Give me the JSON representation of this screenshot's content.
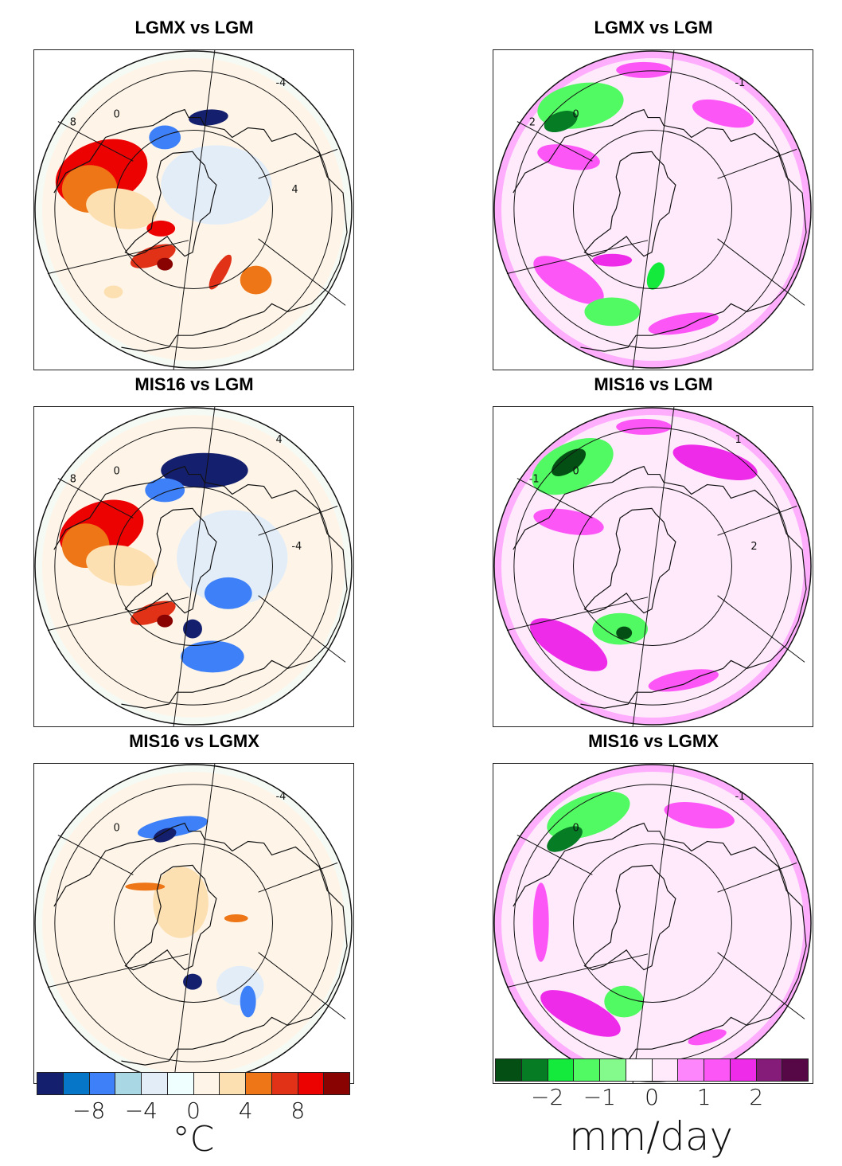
{
  "chart_data": [
    {
      "type": "heatmap",
      "projection": "polar-stereographic (south pole)",
      "variable": "temperature difference",
      "title": "LGMX vs LGM",
      "position": "top-left",
      "contour_labels": [
        "0",
        "-4",
        "8",
        "4"
      ],
      "features": [
        {
          "region": "western continent sector",
          "sign": "warm",
          "approx_value": 8
        },
        {
          "region": "upper center ocean",
          "sign": "cold",
          "approx_value": -10
        },
        {
          "region": "inner continent",
          "sign": "slightly cold",
          "approx_value": -2
        },
        {
          "region": "lower right ocean",
          "sign": "warm",
          "approx_value": 4
        }
      ]
    },
    {
      "type": "heatmap",
      "projection": "polar-stereographic (south pole)",
      "variable": "precipitation difference",
      "title": "LGMX vs LGM",
      "position": "top-right",
      "contour_labels": [
        "0",
        "-1",
        "2"
      ],
      "features": [
        {
          "region": "upper left ocean",
          "sign": "drier",
          "approx_value": -1.5
        },
        {
          "region": "upper right ocean",
          "sign": "wetter",
          "approx_value": 1
        },
        {
          "region": "lower left ocean",
          "sign": "wetter",
          "approx_value": 1
        }
      ]
    },
    {
      "type": "heatmap",
      "projection": "polar-stereographic (south pole)",
      "variable": "temperature difference",
      "title": "MIS16 vs LGM",
      "position": "middle-left",
      "contour_labels": [
        "0",
        "4",
        "8",
        "-4"
      ],
      "features": [
        {
          "region": "western continent sector",
          "sign": "warm",
          "approx_value": 8
        },
        {
          "region": "upper center ocean",
          "sign": "cold",
          "approx_value": -10
        },
        {
          "region": "right interior",
          "sign": "cold",
          "approx_value": -6
        },
        {
          "region": "lower center",
          "sign": "cold",
          "approx_value": -8
        }
      ]
    },
    {
      "type": "heatmap",
      "projection": "polar-stereographic (south pole)",
      "variable": "precipitation difference",
      "title": "MIS16 vs LGM",
      "position": "middle-right",
      "contour_labels": [
        "0",
        "1",
        "-1",
        "2"
      ],
      "features": [
        {
          "region": "upper left ocean",
          "sign": "drier",
          "approx_value": -2.5
        },
        {
          "region": "upper right ocean",
          "sign": "wetter",
          "approx_value": 1.5
        },
        {
          "region": "lower left ocean",
          "sign": "wetter",
          "approx_value": 1.5
        }
      ]
    },
    {
      "type": "heatmap",
      "projection": "polar-stereographic (south pole)",
      "variable": "temperature difference",
      "title": "MIS16 vs LGMX",
      "position": "bottom-left",
      "contour_labels": [
        "0",
        "-4"
      ],
      "features": [
        {
          "region": "upper center ocean",
          "sign": "cold",
          "approx_value": -6
        },
        {
          "region": "inner continent",
          "sign": "slightly warm",
          "approx_value": 2
        },
        {
          "region": "lower center",
          "sign": "cold",
          "approx_value": -8
        }
      ]
    },
    {
      "type": "heatmap",
      "projection": "polar-stereographic (south pole)",
      "variable": "precipitation difference",
      "title": "MIS16 vs LGMX",
      "position": "bottom-right",
      "contour_labels": [
        "0",
        "-1"
      ],
      "features": [
        {
          "region": "upper left ocean",
          "sign": "drier",
          "approx_value": -1
        },
        {
          "region": "upper right ocean",
          "sign": "wetter",
          "approx_value": 1
        },
        {
          "region": "lower left ocean",
          "sign": "wetter",
          "approx_value": 1.5
        }
      ]
    }
  ],
  "panels": [
    {
      "title": "LGMX vs LGM",
      "field": "temp"
    },
    {
      "title": "LGMX vs LGM",
      "field": "precip"
    },
    {
      "title": "MIS16 vs LGM",
      "field": "temp"
    },
    {
      "title": "MIS16 vs LGM",
      "field": "precip"
    },
    {
      "title": "MIS16 vs LGMX",
      "field": "temp"
    },
    {
      "title": "MIS16 vs LGMX",
      "field": "precip"
    }
  ],
  "colorbars": {
    "temp": {
      "unit": "°C",
      "levels": [
        -10,
        -8,
        -6,
        -4,
        -2,
        0,
        2,
        4,
        6,
        8,
        10
      ],
      "tick_labels": [
        "−8",
        "−4",
        "0",
        "4",
        "8"
      ],
      "tick_values": [
        -8,
        -4,
        0,
        4,
        8
      ],
      "colors": [
        "#141f6e",
        "#0677c8",
        "#3e80f8",
        "#a9d8e4",
        "#e3edf8",
        "#effefe",
        "#fef5e8",
        "#fde0b1",
        "#ee7616",
        "#e13218",
        "#ed0202",
        "#8a0303"
      ]
    },
    "precip": {
      "unit": "mm/day",
      "levels": [
        -2.5,
        -2,
        -1.5,
        -1,
        -0.5,
        0,
        0.5,
        1,
        1.5,
        2,
        2.5
      ],
      "tick_labels": [
        "−2",
        "−1",
        "0",
        "1",
        "2"
      ],
      "tick_values": [
        -2,
        -1,
        0,
        1,
        2
      ],
      "colors": [
        "#045014",
        "#067c24",
        "#14ea3c",
        "#51fa62",
        "#84fa8c",
        "#ffffff",
        "#ffeafc",
        "#fe86fc",
        "#fd56f6",
        "#ef2bea",
        "#861c7a",
        "#560846"
      ]
    }
  }
}
